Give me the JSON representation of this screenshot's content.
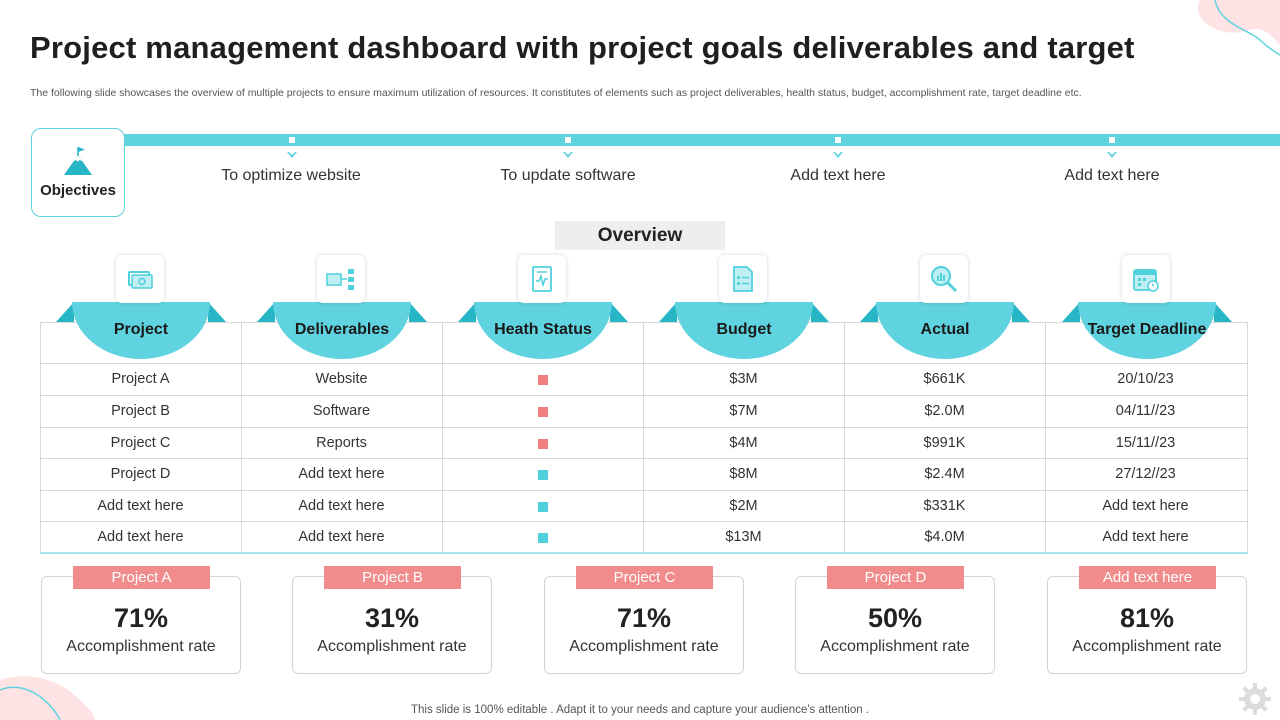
{
  "title": "Project management dashboard with project goals deliverables and target",
  "subtitle": "The following slide showcases the overview of multiple projects to ensure maximum utilization of resources. It constitutes of elements such as project deliverables, health status, budget, accomplishment rate, target deadline etc.",
  "objectives": {
    "label": "Objectives",
    "items": [
      "To optimize website",
      "To update software",
      "Add text here",
      "Add text here"
    ]
  },
  "overview_label": "Overview",
  "table": {
    "headers": [
      "Project",
      "Deliverables",
      "Heath Status",
      "Budget",
      "Actual",
      "Target Deadline"
    ],
    "header_icons": [
      "money-icon",
      "deliverables-icon",
      "health-report-icon",
      "budget-document-icon",
      "analysis-magnifier-icon",
      "calendar-icon"
    ],
    "rows": [
      {
        "project": "Project A",
        "deliverable": "Website",
        "status": "red",
        "budget": "$3M",
        "actual": "$661K",
        "deadline": "20/10/23"
      },
      {
        "project": "Project B",
        "deliverable": "Software",
        "status": "red",
        "budget": "$7M",
        "actual": "$2.0M",
        "deadline": "04/11//23"
      },
      {
        "project": "Project C",
        "deliverable": "Reports",
        "status": "red",
        "budget": "$4M",
        "actual": "$991K",
        "deadline": "15/11//23"
      },
      {
        "project": "Project D",
        "deliverable": "Add text here",
        "status": "teal",
        "budget": "$8M",
        "actual": "$2.4M",
        "deadline": "27/12//23"
      },
      {
        "project": "Add text here",
        "deliverable": "Add text here",
        "status": "teal",
        "budget": "$2M",
        "actual": "$331K",
        "deadline": "Add text here"
      },
      {
        "project": "Add text here",
        "deliverable": "Add text here",
        "status": "teal",
        "budget": "$13M",
        "actual": "$4.0M",
        "deadline": "Add text here"
      }
    ]
  },
  "cards": [
    {
      "name": "Project A",
      "percent": "71%",
      "label": "Accomplishment rate"
    },
    {
      "name": "Project B",
      "percent": "31%",
      "label": "Accomplishment rate"
    },
    {
      "name": "Project C",
      "percent": "71%",
      "label": "Accomplishment rate"
    },
    {
      "name": "Project D",
      "percent": "50%",
      "label": "Accomplishment rate"
    },
    {
      "name": "Add text here",
      "percent": "81%",
      "label": "Accomplishment rate"
    }
  ],
  "colors": {
    "accent": "#5fd3df",
    "accent_dark": "#26b6c6",
    "status_red": "#ef7f7f",
    "status_teal": "#4fd0dd",
    "tag": "#f08c8c"
  },
  "footer": "This slide is 100% editable . Adapt it to your needs and capture your audience's attention ."
}
